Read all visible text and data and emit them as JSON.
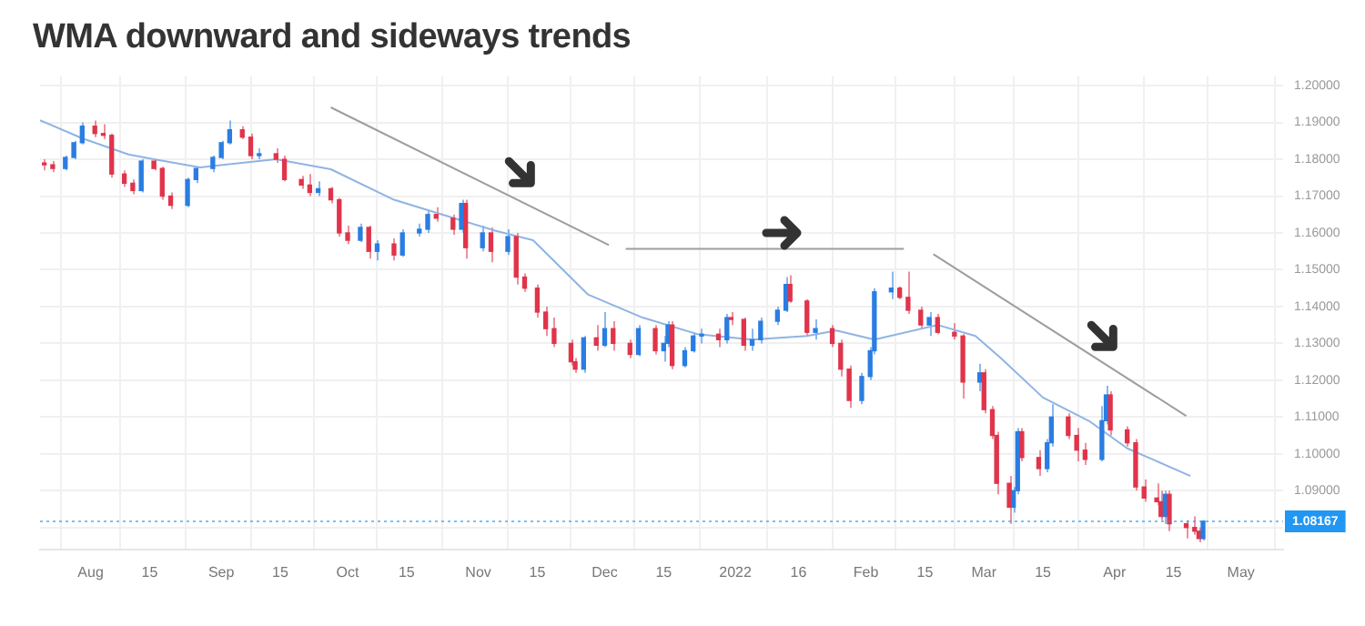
{
  "chart_data": {
    "type": "candlestick",
    "title": "WMA downward and sideways trends",
    "series": [
      {
        "type": "candlestick",
        "x": [
          "2021-07-21",
          "2021-07-23",
          "2021-07-26",
          "2021-07-28",
          "2021-07-30",
          "2021-08-02",
          "2021-08-04",
          "2021-08-06",
          "2021-08-09",
          "2021-08-11",
          "2021-08-13",
          "2021-08-16",
          "2021-08-18",
          "2021-08-20",
          "2021-08-24",
          "2021-08-26",
          "2021-08-30",
          "2021-09-01",
          "2021-09-03",
          "2021-09-06",
          "2021-09-08",
          "2021-09-10",
          "2021-09-14",
          "2021-09-16",
          "2021-09-20",
          "2021-09-22",
          "2021-09-24",
          "2021-09-27",
          "2021-09-29",
          "2021-10-01",
          "2021-10-04",
          "2021-10-06",
          "2021-10-08",
          "2021-10-12",
          "2021-10-14",
          "2021-10-18",
          "2021-10-20",
          "2021-10-22",
          "2021-10-26",
          "2021-10-28",
          "2021-10-29",
          "2021-11-02",
          "2021-11-04",
          "2021-11-08",
          "2021-11-10",
          "2021-11-12",
          "2021-11-15",
          "2021-11-17",
          "2021-11-19",
          "2021-11-23",
          "2021-11-24",
          "2021-11-26",
          "2021-11-29",
          "2021-12-01",
          "2021-12-03",
          "2021-12-07",
          "2021-12-09",
          "2021-12-13",
          "2021-12-15",
          "2021-12-16",
          "2021-12-17",
          "2021-12-20",
          "2021-12-22",
          "2021-12-24",
          "2021-12-28",
          "2021-12-30",
          "2021-12-31",
          "2022-01-03",
          "2022-01-05",
          "2022-01-07",
          "2022-01-11",
          "2022-01-13",
          "2022-01-14",
          "2022-01-18",
          "2022-01-20",
          "2022-01-24",
          "2022-01-26",
          "2022-01-28",
          "2022-01-31",
          "2022-02-02",
          "2022-02-03",
          "2022-02-07",
          "2022-02-09",
          "2022-02-11",
          "2022-02-14",
          "2022-02-16",
          "2022-02-18",
          "2022-02-22",
          "2022-02-24",
          "2022-02-28",
          "2022-03-01",
          "2022-03-03",
          "2022-03-04",
          "2022-03-07",
          "2022-03-08",
          "2022-03-09",
          "2022-03-10",
          "2022-03-14",
          "2022-03-16",
          "2022-03-17",
          "2022-03-21",
          "2022-03-23",
          "2022-03-25",
          "2022-03-29",
          "2022-03-30",
          "2022-03-31",
          "2022-04-04",
          "2022-04-06",
          "2022-04-08",
          "2022-04-11",
          "2022-04-12",
          "2022-04-13",
          "2022-04-14",
          "2022-04-18",
          "2022-04-20",
          "2022-04-21",
          "2022-04-22"
        ],
        "ohlc": [
          [
            1.179,
            1.18,
            1.177,
            1.1785
          ],
          [
            1.1785,
            1.1795,
            1.1765,
            1.1775
          ],
          [
            1.1775,
            1.181,
            1.177,
            1.1805
          ],
          [
            1.1805,
            1.185,
            1.18,
            1.1845
          ],
          [
            1.1845,
            1.19,
            1.184,
            1.189
          ],
          [
            1.189,
            1.1905,
            1.186,
            1.187
          ],
          [
            1.187,
            1.1895,
            1.1855,
            1.1865
          ],
          [
            1.1865,
            1.187,
            1.175,
            1.176
          ],
          [
            1.176,
            1.177,
            1.1725,
            1.1735
          ],
          [
            1.1735,
            1.1745,
            1.1705,
            1.1715
          ],
          [
            1.1715,
            1.18,
            1.171,
            1.1795
          ],
          [
            1.1795,
            1.18,
            1.177,
            1.1775
          ],
          [
            1.1775,
            1.178,
            1.169,
            1.17
          ],
          [
            1.17,
            1.171,
            1.1665,
            1.1675
          ],
          [
            1.1675,
            1.175,
            1.167,
            1.1745
          ],
          [
            1.1745,
            1.178,
            1.1735,
            1.1775
          ],
          [
            1.1775,
            1.181,
            1.1765,
            1.1805
          ],
          [
            1.1805,
            1.185,
            1.18,
            1.1845
          ],
          [
            1.1845,
            1.1905,
            1.184,
            1.188
          ],
          [
            1.188,
            1.189,
            1.1855,
            1.186
          ],
          [
            1.186,
            1.187,
            1.18,
            1.181
          ],
          [
            1.181,
            1.183,
            1.18,
            1.1815
          ],
          [
            1.1815,
            1.183,
            1.179,
            1.18
          ],
          [
            1.18,
            1.181,
            1.174,
            1.1745
          ],
          [
            1.1745,
            1.1755,
            1.172,
            1.173
          ],
          [
            1.173,
            1.176,
            1.17,
            1.171
          ],
          [
            1.171,
            1.174,
            1.17,
            1.172
          ],
          [
            1.172,
            1.1725,
            1.168,
            1.169
          ],
          [
            1.169,
            1.1695,
            1.159,
            1.16
          ],
          [
            1.16,
            1.162,
            1.157,
            1.158
          ],
          [
            1.158,
            1.1625,
            1.1575,
            1.1615
          ],
          [
            1.1615,
            1.162,
            1.153,
            1.155
          ],
          [
            1.155,
            1.158,
            1.1525,
            1.157
          ],
          [
            1.157,
            1.1585,
            1.1525,
            1.154
          ],
          [
            1.154,
            1.161,
            1.1535,
            1.16
          ],
          [
            1.16,
            1.1625,
            1.159,
            1.161
          ],
          [
            1.161,
            1.166,
            1.16,
            1.165
          ],
          [
            1.165,
            1.167,
            1.163,
            1.164
          ],
          [
            1.164,
            1.165,
            1.1595,
            1.161
          ],
          [
            1.161,
            1.169,
            1.16,
            1.168
          ],
          [
            1.168,
            1.169,
            1.153,
            1.156
          ],
          [
            1.156,
            1.162,
            1.155,
            1.16
          ],
          [
            1.16,
            1.1615,
            1.152,
            1.155
          ],
          [
            1.155,
            1.161,
            1.154,
            1.159
          ],
          [
            1.159,
            1.16,
            1.146,
            1.148
          ],
          [
            1.148,
            1.149,
            1.144,
            1.145
          ],
          [
            1.145,
            1.146,
            1.137,
            1.1385
          ],
          [
            1.1385,
            1.14,
            1.132,
            1.134
          ],
          [
            1.134,
            1.137,
            1.129,
            1.13
          ],
          [
            1.13,
            1.131,
            1.124,
            1.125
          ],
          [
            1.125,
            1.126,
            1.122,
            1.123
          ],
          [
            1.123,
            1.132,
            1.122,
            1.1315
          ],
          [
            1.1315,
            1.135,
            1.128,
            1.1295
          ],
          [
            1.1295,
            1.1385,
            1.129,
            1.134
          ],
          [
            1.134,
            1.136,
            1.128,
            1.13
          ],
          [
            1.13,
            1.131,
            1.126,
            1.127
          ],
          [
            1.127,
            1.135,
            1.1265,
            1.134
          ],
          [
            1.134,
            1.135,
            1.127,
            1.128
          ],
          [
            1.128,
            1.132,
            1.125,
            1.13
          ],
          [
            1.13,
            1.136,
            1.129,
            1.135
          ],
          [
            1.135,
            1.136,
            1.123,
            1.124
          ],
          [
            1.124,
            1.129,
            1.1235,
            1.128
          ],
          [
            1.128,
            1.133,
            1.1275,
            1.132
          ],
          [
            1.132,
            1.134,
            1.13,
            1.1325
          ],
          [
            1.1325,
            1.134,
            1.129,
            1.131
          ],
          [
            1.131,
            1.138,
            1.13,
            1.137
          ],
          [
            1.137,
            1.1385,
            1.135,
            1.1365
          ],
          [
            1.1365,
            1.137,
            1.128,
            1.1295
          ],
          [
            1.1295,
            1.134,
            1.128,
            1.131
          ],
          [
            1.131,
            1.137,
            1.13,
            1.136
          ],
          [
            1.136,
            1.14,
            1.135,
            1.139
          ],
          [
            1.139,
            1.148,
            1.1385,
            1.146
          ],
          [
            1.146,
            1.1485,
            1.141,
            1.1415
          ],
          [
            1.1415,
            1.142,
            1.132,
            1.133
          ],
          [
            1.133,
            1.1365,
            1.131,
            1.134
          ],
          [
            1.134,
            1.135,
            1.129,
            1.13
          ],
          [
            1.13,
            1.131,
            1.121,
            1.123
          ],
          [
            1.123,
            1.124,
            1.1125,
            1.1145
          ],
          [
            1.1145,
            1.122,
            1.1135,
            1.121
          ],
          [
            1.121,
            1.129,
            1.12,
            1.128
          ],
          [
            1.128,
            1.145,
            1.127,
            1.144
          ],
          [
            1.144,
            1.1495,
            1.142,
            1.145
          ],
          [
            1.145,
            1.1455,
            1.142,
            1.1425
          ],
          [
            1.1425,
            1.1495,
            1.138,
            1.139
          ],
          [
            1.139,
            1.14,
            1.134,
            1.135
          ],
          [
            1.135,
            1.1385,
            1.132,
            1.137
          ],
          [
            1.137,
            1.138,
            1.1325,
            1.133
          ],
          [
            1.133,
            1.1355,
            1.131,
            1.132
          ],
          [
            1.132,
            1.1325,
            1.115,
            1.1195
          ],
          [
            1.1195,
            1.1245,
            1.117,
            1.122
          ],
          [
            1.122,
            1.123,
            1.111,
            1.112
          ],
          [
            1.112,
            1.113,
            1.104,
            1.105
          ],
          [
            1.105,
            1.106,
            1.089,
            1.092
          ],
          [
            1.092,
            1.094,
            1.081,
            1.0855
          ],
          [
            1.0855,
            1.091,
            1.084,
            1.09
          ],
          [
            1.09,
            1.107,
            1.089,
            1.106
          ],
          [
            1.106,
            1.107,
            1.098,
            1.099
          ],
          [
            1.099,
            1.101,
            1.094,
            1.096
          ],
          [
            1.096,
            1.104,
            1.095,
            1.103
          ],
          [
            1.103,
            1.1135,
            1.102,
            1.11
          ],
          [
            1.11,
            1.111,
            1.104,
            1.105
          ],
          [
            1.105,
            1.107,
            1.098,
            1.101
          ],
          [
            1.101,
            1.103,
            1.097,
            1.0985
          ],
          [
            1.0985,
            1.113,
            1.098,
            1.109
          ],
          [
            1.109,
            1.1185,
            1.108,
            1.116
          ],
          [
            1.116,
            1.117,
            1.105,
            1.1065
          ],
          [
            1.1065,
            1.1075,
            1.102,
            1.103
          ],
          [
            1.103,
            1.104,
            1.09,
            1.091
          ],
          [
            1.091,
            1.093,
            1.087,
            1.088
          ],
          [
            1.088,
            1.092,
            1.086,
            1.087
          ],
          [
            1.087,
            1.09,
            1.082,
            1.083
          ],
          [
            1.083,
            1.09,
            1.081,
            1.089
          ],
          [
            1.089,
            1.09,
            1.079,
            1.081
          ],
          [
            1.081,
            1.082,
            1.077,
            1.08
          ],
          [
            1.08,
            1.083,
            1.078,
            1.079
          ],
          [
            1.079,
            1.08,
            1.076,
            1.077
          ],
          [
            1.077,
            1.082,
            1.0765,
            1.0817
          ]
        ]
      },
      {
        "type": "line",
        "color": "#8fb4e3",
        "x": [
          "2021-07-20",
          "2021-07-30",
          "2021-08-10",
          "2021-08-16",
          "2021-08-27",
          "2021-09-14",
          "2021-09-27",
          "2021-10-12",
          "2021-10-22",
          "2021-11-05",
          "2021-11-14",
          "2021-11-27",
          "2021-12-10",
          "2021-12-23",
          "2022-01-05",
          "2022-01-18",
          "2022-01-25",
          "2022-02-03",
          "2022-02-18",
          "2022-02-27",
          "2022-03-05",
          "2022-03-15",
          "2022-03-26",
          "2022-04-04",
          "2022-04-19"
        ],
        "values": [
          1.1906,
          1.1857,
          1.1813,
          1.18,
          1.1778,
          1.18,
          1.1773,
          1.169,
          1.1655,
          1.1606,
          1.158,
          1.1433,
          1.137,
          1.1325,
          1.131,
          1.132,
          1.1335,
          1.131,
          1.135,
          1.132,
          1.126,
          1.1153,
          1.1089,
          1.1015,
          1.094
        ]
      },
      {
        "type": "line",
        "color": "#9e9e9e",
        "x": [
          "2021-09-27",
          "2021-12-02"
        ],
        "values": [
          1.1941,
          1.1567
        ]
      },
      {
        "type": "line",
        "color": "#9e9e9e",
        "x": [
          "2021-12-06",
          "2022-02-10"
        ],
        "values": [
          1.1557,
          1.1557
        ]
      },
      {
        "type": "line",
        "color": "#9e9e9e",
        "x": [
          "2022-02-17",
          "2022-04-18"
        ],
        "values": [
          1.1542,
          1.1103
        ]
      }
    ],
    "xlim": [
      "2021-07-20",
      "2022-05-11"
    ],
    "xticks": [
      {
        "value": "2021-08-01",
        "label": "Aug"
      },
      {
        "value": "2021-08-15",
        "label": "15"
      },
      {
        "value": "2021-09-01",
        "label": "Sep"
      },
      {
        "value": "2021-09-15",
        "label": "15"
      },
      {
        "value": "2021-10-01",
        "label": "Oct"
      },
      {
        "value": "2021-10-15",
        "label": "15"
      },
      {
        "value": "2021-11-01",
        "label": "Nov"
      },
      {
        "value": "2021-11-15",
        "label": "15"
      },
      {
        "value": "2021-12-01",
        "label": "Dec"
      },
      {
        "value": "2021-12-15",
        "label": "15"
      },
      {
        "value": "2022-01-01",
        "label": "2022"
      },
      {
        "value": "2022-01-16",
        "label": "16"
      },
      {
        "value": "2022-02-01",
        "label": "Feb"
      },
      {
        "value": "2022-02-15",
        "label": "15"
      },
      {
        "value": "2022-03-01",
        "label": "Mar"
      },
      {
        "value": "2022-03-15",
        "label": "15"
      },
      {
        "value": "2022-04-01",
        "label": "Apr"
      },
      {
        "value": "2022-04-15",
        "label": "15"
      },
      {
        "value": "2022-05-01",
        "label": "May"
      }
    ],
    "ylim": [
      1.074,
      1.2025
    ],
    "yticks": [
      {
        "value": 1.08,
        "label": null
      },
      {
        "value": 1.09,
        "label": "1.09000"
      },
      {
        "value": 1.1,
        "label": "1.10000"
      },
      {
        "value": 1.11,
        "label": "1.11000"
      },
      {
        "value": 1.12,
        "label": "1.12000"
      },
      {
        "value": 1.13,
        "label": "1.13000"
      },
      {
        "value": 1.14,
        "label": "1.14000"
      },
      {
        "value": 1.15,
        "label": "1.15000"
      },
      {
        "value": 1.16,
        "label": "1.16000"
      },
      {
        "value": 1.17,
        "label": "1.17000"
      },
      {
        "value": 1.18,
        "label": "1.18000"
      },
      {
        "value": 1.19,
        "label": "1.19000"
      },
      {
        "value": 1.2,
        "label": "1.20000"
      }
    ],
    "grid": true,
    "ref_lines": [
      {
        "axis": "y",
        "value": 1.08167,
        "label": "1.08167",
        "color": "#2196f3",
        "line_style": "dotted"
      }
    ]
  }
}
